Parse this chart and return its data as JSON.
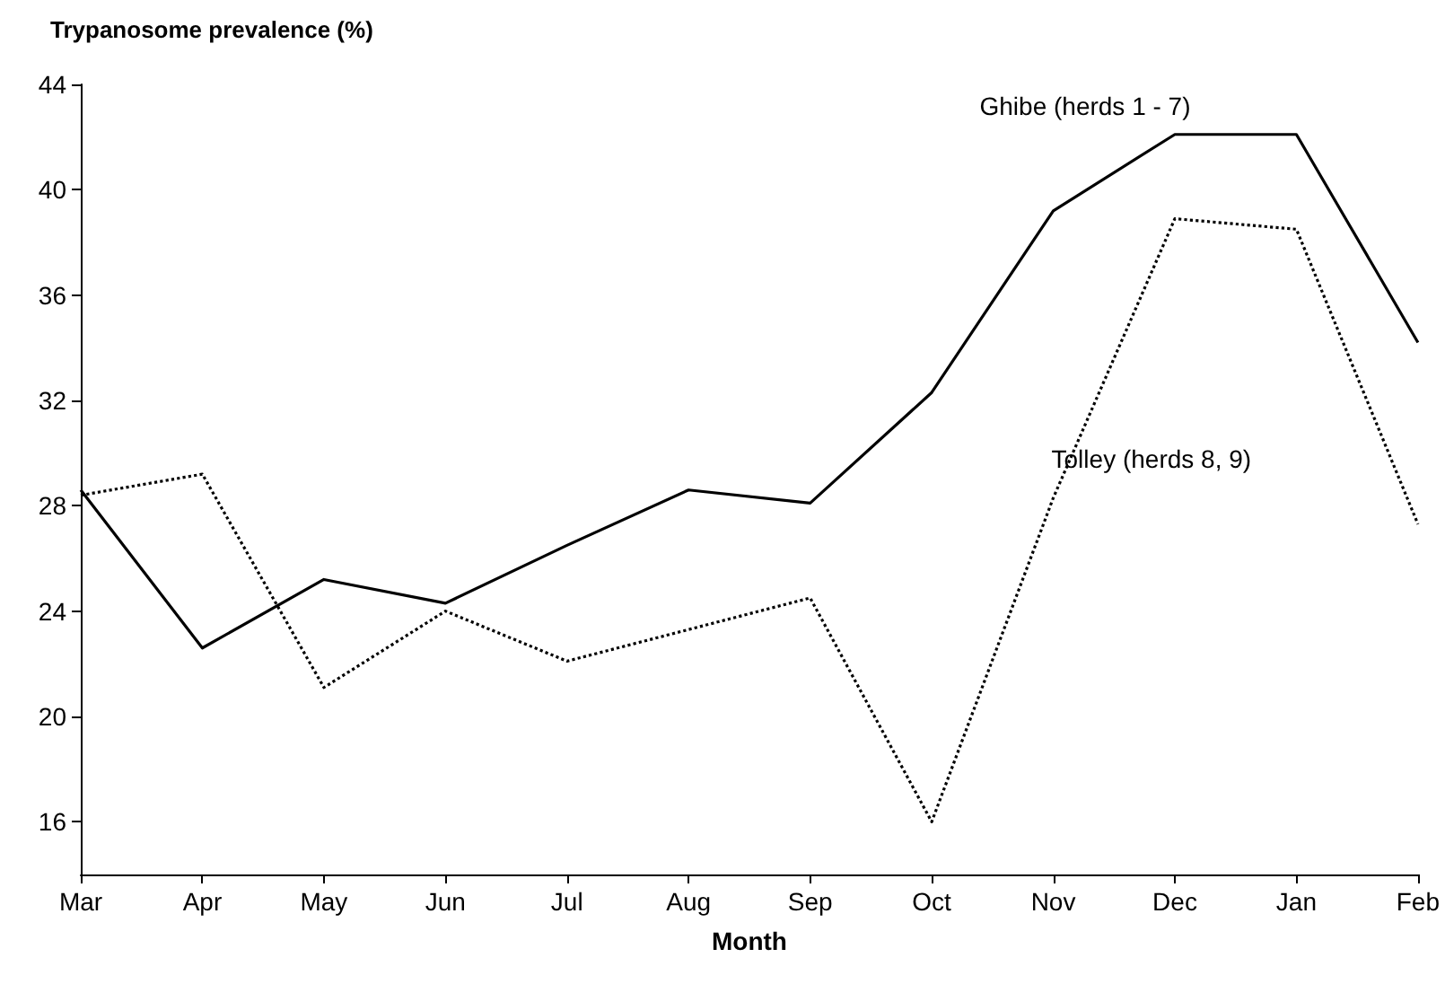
{
  "chart_data": {
    "type": "line",
    "ylabel": "Trypanosome prevalence (%)",
    "xlabel": "Month",
    "categories": [
      "Mar",
      "Apr",
      "May",
      "Jun",
      "Jul",
      "Aug",
      "Sep",
      "Oct",
      "Nov",
      "Dec",
      "Jan",
      "Feb"
    ],
    "series": [
      {
        "name": "Ghibe (herds 1 - 7)",
        "color": "#000000",
        "line_style": "solid",
        "values": [
          28.6,
          22.6,
          25.2,
          24.3,
          26.5,
          28.6,
          28.1,
          32.3,
          39.2,
          42.1,
          42.1,
          34.2
        ]
      },
      {
        "name": "Tolley (herds 8, 9)",
        "color": "#000000",
        "line_style": "dotted",
        "values": [
          28.4,
          29.2,
          21.1,
          24.0,
          22.1,
          23.3,
          24.5,
          16.0,
          28.3,
          38.9,
          38.5,
          27.3
        ]
      }
    ],
    "ylim": [
      14,
      44
    ],
    "yticks": [
      16,
      20,
      24,
      28,
      32,
      36,
      40,
      44
    ],
    "grid": false,
    "legend": false,
    "marker": "none"
  }
}
